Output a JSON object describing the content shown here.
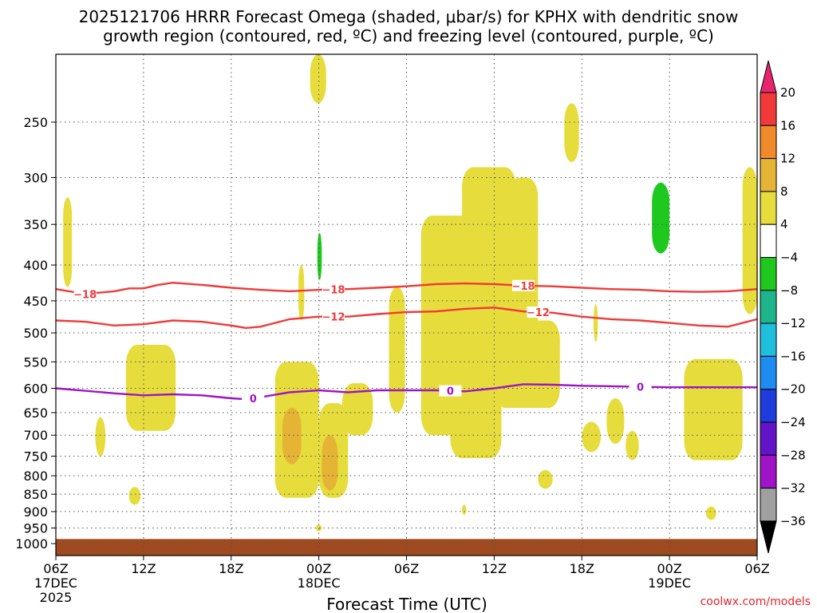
{
  "title": {
    "line1": "2025121706 HRRR Forecast Omega (shaded, μbar/s) for KPHX with dendritic snow",
    "line2": "growth region (contoured, red, ºC) and freezing level (contoured, purple, ºC)"
  },
  "credit": "coolwx.com/models",
  "chart_data": {
    "type": "heatmap",
    "xlabel": "Forecast Time (UTC)",
    "x_range_hours": [
      0,
      48
    ],
    "x_ticks": [
      {
        "hour": 0,
        "label": "06Z",
        "sub": "17DEC",
        "sub2": "2025"
      },
      {
        "hour": 6,
        "label": "12Z",
        "sub": "",
        "sub2": ""
      },
      {
        "hour": 12,
        "label": "18Z",
        "sub": "",
        "sub2": ""
      },
      {
        "hour": 18,
        "label": "00Z",
        "sub": "18DEC",
        "sub2": ""
      },
      {
        "hour": 24,
        "label": "06Z",
        "sub": "",
        "sub2": ""
      },
      {
        "hour": 30,
        "label": "12Z",
        "sub": "",
        "sub2": ""
      },
      {
        "hour": 36,
        "label": "18Z",
        "sub": "",
        "sub2": ""
      },
      {
        "hour": 42,
        "label": "00Z",
        "sub": "19DEC",
        "sub2": ""
      },
      {
        "hour": 48,
        "label": "06Z",
        "sub": "",
        "sub2": ""
      }
    ],
    "y_scale": "log-pressure",
    "y_range_hpa": [
      200,
      1040
    ],
    "y_ticks": [
      "250",
      "300",
      "350",
      "400",
      "450",
      "500",
      "550",
      "600",
      "650",
      "700",
      "750",
      "800",
      "850",
      "900",
      "950",
      "1000"
    ],
    "colorbar": {
      "labels": [
        "20",
        "16",
        "12",
        "8",
        "4",
        "−4",
        "−8",
        "−12",
        "−16",
        "−20",
        "−24",
        "−28",
        "−32",
        "−36"
      ],
      "colors": [
        "#e8246e",
        "#f03a3a",
        "#f08a2a",
        "#e6b435",
        "#e6dc3c",
        "#ffffff",
        "#1ec81e",
        "#1eb48c",
        "#1ebedc",
        "#1e8cf0",
        "#1e3cdc",
        "#6414c8",
        "#a014c8",
        "#a0a0a0",
        "#000000"
      ]
    },
    "omega_regions": [
      {
        "value": "4 to 8",
        "color": "#e6dc3c",
        "t": [
          0.5,
          1.1
        ],
        "p": [
          320,
          430
        ]
      },
      {
        "value": "4 to 8",
        "color": "#e6dc3c",
        "t": [
          4.8,
          8.2
        ],
        "p": [
          520,
          690
        ]
      },
      {
        "value": "4 to 8",
        "color": "#e6dc3c",
        "t": [
          2.7,
          3.4
        ],
        "p": [
          660,
          750
        ]
      },
      {
        "value": "4 to 8",
        "color": "#e6dc3c",
        "t": [
          5.0,
          5.8
        ],
        "p": [
          830,
          880
        ]
      },
      {
        "value": "4 to 8",
        "color": "#e6dc3c",
        "t": [
          15.0,
          18.0
        ],
        "p": [
          550,
          860
        ]
      },
      {
        "value": "8 to 12",
        "color": "#e6b435",
        "t": [
          15.5,
          16.8
        ],
        "p": [
          640,
          770
        ]
      },
      {
        "value": "4 to 8",
        "color": "#e6dc3c",
        "t": [
          18.0,
          20.0
        ],
        "p": [
          630,
          860
        ]
      },
      {
        "value": "8 to 12",
        "color": "#e6b435",
        "t": [
          18.2,
          19.3
        ],
        "p": [
          700,
          840
        ]
      },
      {
        "value": "4 to 8",
        "color": "#e6dc3c",
        "t": [
          19.6,
          21.7
        ],
        "p": [
          590,
          700
        ]
      },
      {
        "value": "4 to 8",
        "color": "#e6dc3c",
        "t": [
          17.8,
          18.2
        ],
        "p": [
          940,
          960
        ]
      },
      {
        "value": "4 to 8",
        "color": "#e6dc3c",
        "t": [
          17.4,
          18.5
        ],
        "p": [
          200,
          235
        ]
      },
      {
        "value": "4 to 8",
        "color": "#e6dc3c",
        "t": [
          16.6,
          17.0
        ],
        "p": [
          400,
          480
        ]
      },
      {
        "value": "4 to 8",
        "color": "#e6dc3c",
        "t": [
          22.8,
          23.9
        ],
        "p": [
          430,
          650
        ]
      },
      {
        "value": "4 to 8",
        "color": "#e6dc3c",
        "t": [
          25.0,
          29.5
        ],
        "p": [
          340,
          700
        ]
      },
      {
        "value": "4 to 8",
        "color": "#e6dc3c",
        "t": [
          27.0,
          30.5
        ],
        "p": [
          500,
          755
        ]
      },
      {
        "value": "4 to 8",
        "color": "#e6dc3c",
        "t": [
          27.8,
          31.5
        ],
        "p": [
          290,
          620
        ]
      },
      {
        "value": "4 to 8",
        "color": "#e6dc3c",
        "t": [
          31.0,
          33.0
        ],
        "p": [
          300,
          640
        ]
      },
      {
        "value": "4 to 8",
        "color": "#e6dc3c",
        "t": [
          30.0,
          34.5
        ],
        "p": [
          480,
          640
        ]
      },
      {
        "value": "4 to 8",
        "color": "#e6dc3c",
        "t": [
          33.0,
          34.0
        ],
        "p": [
          785,
          835
        ]
      },
      {
        "value": "4 to 8",
        "color": "#e6dc3c",
        "t": [
          36.0,
          37.3
        ],
        "p": [
          670,
          740
        ]
      },
      {
        "value": "4 to 8",
        "color": "#e6dc3c",
        "t": [
          37.7,
          38.9
        ],
        "p": [
          620,
          720
        ]
      },
      {
        "value": "4 to 8",
        "color": "#e6dc3c",
        "t": [
          39.0,
          39.9
        ],
        "p": [
          690,
          760
        ]
      },
      {
        "value": "4 to 8",
        "color": "#e6dc3c",
        "t": [
          43.0,
          47.0
        ],
        "p": [
          545,
          760
        ]
      },
      {
        "value": "4 to 8",
        "color": "#e6dc3c",
        "t": [
          44.5,
          45.2
        ],
        "p": [
          885,
          925
        ]
      },
      {
        "value": "4 to 8",
        "color": "#e6dc3c",
        "t": [
          47.0,
          48.0
        ],
        "p": [
          290,
          470
        ]
      },
      {
        "value": "4 to 8",
        "color": "#e6dc3c",
        "t": [
          34.8,
          35.8
        ],
        "p": [
          235,
          285
        ]
      },
      {
        "value": "4 to 8",
        "color": "#e6dc3c",
        "t": [
          36.8,
          37.1
        ],
        "p": [
          455,
          515
        ]
      },
      {
        "value": "4 to 8",
        "color": "#e6dc3c",
        "t": [
          27.8,
          28.1
        ],
        "p": [
          880,
          910
        ]
      },
      {
        "value": "-4 to -8",
        "color": "#1ec81e",
        "t": [
          40.8,
          42.0
        ],
        "p": [
          305,
          385
        ]
      },
      {
        "value": "-4 to -8",
        "color": "#1ec81e",
        "t": [
          17.9,
          18.2
        ],
        "p": [
          360,
          420
        ]
      }
    ],
    "ground": {
      "color": "#a04a20",
      "p_top": 985
    },
    "contours": [
      {
        "label": "-18",
        "color": "#f03a3a",
        "t": [
          0,
          2,
          4,
          5,
          6,
          7,
          8,
          10,
          12,
          14,
          16,
          18,
          20,
          22,
          24,
          26,
          28,
          30,
          32,
          34,
          36,
          38,
          40,
          42,
          44,
          46,
          48
        ],
        "p": [
          433,
          440,
          436,
          432,
          432,
          427,
          424,
          427,
          431,
          434,
          436,
          434,
          433,
          431,
          429,
          426,
          425,
          426,
          428,
          429,
          431,
          433,
          434,
          436,
          437,
          436,
          433
        ],
        "label_t": [
          2,
          19,
          32
        ]
      },
      {
        "label": "-12",
        "color": "#f03a3a",
        "t": [
          0,
          2,
          4,
          6,
          8,
          10,
          12,
          13,
          14,
          16,
          18,
          20,
          22,
          24,
          26,
          28,
          30,
          32,
          34,
          36,
          38,
          40,
          42,
          44,
          46,
          48
        ],
        "p": [
          480,
          482,
          488,
          486,
          480,
          482,
          488,
          492,
          490,
          478,
          474,
          474,
          470,
          467,
          466,
          462,
          460,
          466,
          468,
          474,
          478,
          480,
          484,
          488,
          490,
          478
        ],
        "label_t": [
          19,
          33
        ]
      },
      {
        "label": "0",
        "color": "#a014c8",
        "t": [
          0,
          2,
          4,
          6,
          8,
          10,
          12,
          13,
          14,
          16,
          18,
          20,
          22,
          24,
          26,
          28,
          30,
          32,
          34,
          36,
          38,
          40,
          42,
          44,
          46,
          48
        ],
        "p": [
          600,
          605,
          610,
          614,
          612,
          614,
          620,
          622,
          618,
          608,
          604,
          608,
          604,
          604,
          604,
          606,
          600,
          592,
          593,
          595,
          596,
          597,
          598,
          598,
          598,
          598
        ],
        "label_t": [
          13.5,
          27,
          40
        ]
      }
    ]
  }
}
